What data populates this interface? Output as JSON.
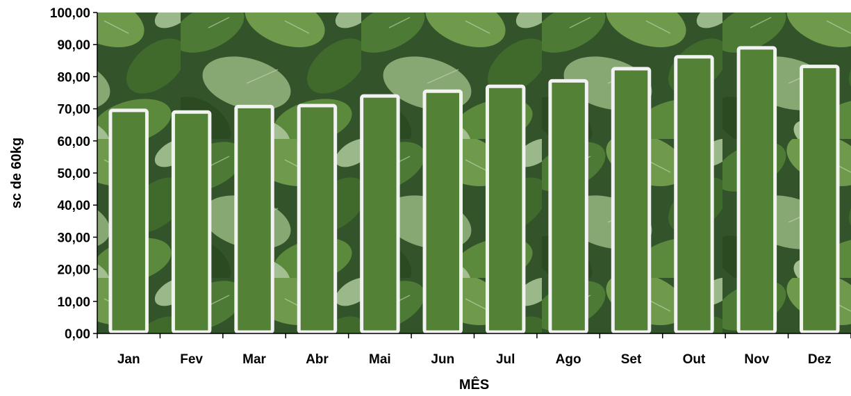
{
  "chart_data": {
    "type": "bar",
    "title": "",
    "xlabel": "MÊS",
    "ylabel": "sc de 60kg",
    "categories": [
      "Jan",
      "Fev",
      "Mar",
      "Abr",
      "Mai",
      "Jun",
      "Jul",
      "Ago",
      "Set",
      "Out",
      "Nov",
      "Dez"
    ],
    "values": [
      69.5,
      69.0,
      70.7,
      71.0,
      74.0,
      75.5,
      77.0,
      78.7,
      82.5,
      86.2,
      89.0,
      83.2
    ],
    "ylim": [
      0,
      100
    ],
    "yticks": [
      0,
      10,
      20,
      30,
      40,
      50,
      60,
      70,
      80,
      90,
      100
    ],
    "ytick_labels": [
      "0,00",
      "10,00",
      "20,00",
      "30,00",
      "40,00",
      "50,00",
      "60,00",
      "70,00",
      "80,00",
      "90,00",
      "100,00"
    ],
    "grid": false,
    "legend": "none",
    "background": "photo of soybean plants",
    "colors": {
      "bar_fill": "#538135",
      "bar_border": "#f2f2f2",
      "axis": "#000000",
      "text": "#000000"
    }
  }
}
